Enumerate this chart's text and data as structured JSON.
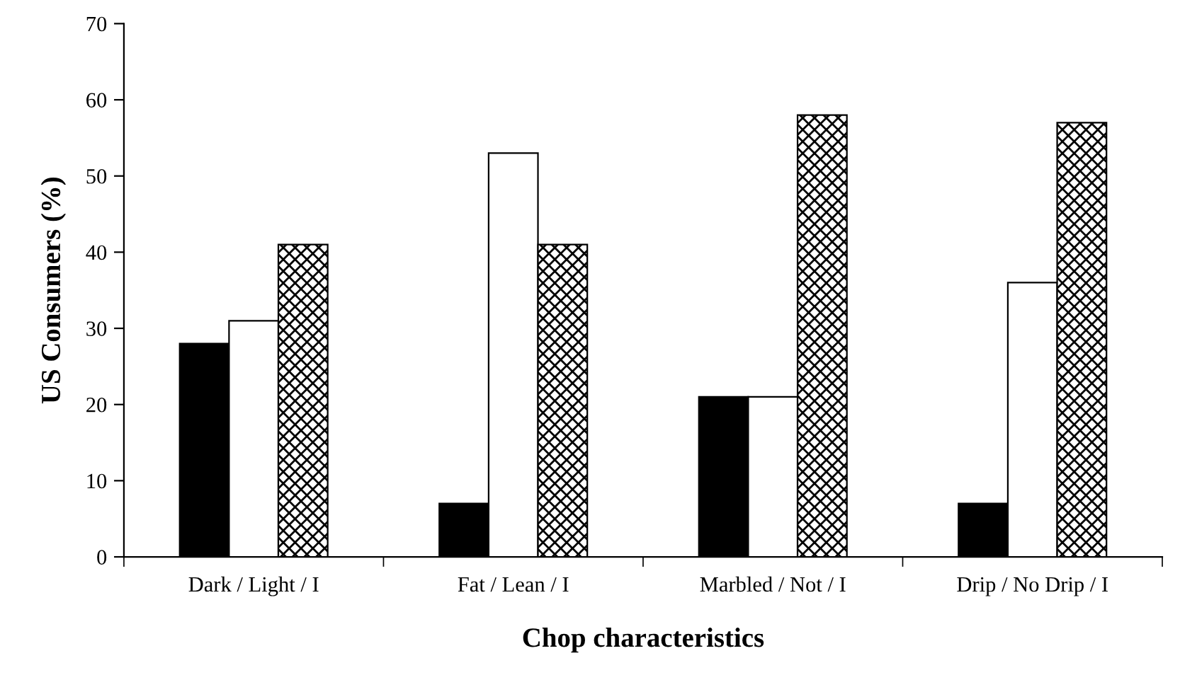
{
  "chart_data": {
    "type": "bar",
    "xlabel": "Chop characteristics",
    "ylabel": "US Consumers (%)",
    "categories": [
      "Dark / Light / I",
      "Fat / Lean / I",
      "Marbled / Not / I",
      "Drip / No Drip / I"
    ],
    "series": [
      {
        "color": "#000000",
        "values": [
          28,
          7,
          21,
          7
        ]
      },
      {
        "color": "#ffffff",
        "values": [
          31,
          53,
          21,
          36
        ]
      },
      {
        "color": "#000000",
        "values": [
          41,
          41,
          58,
          57
        ]
      }
    ],
    "ylim": [
      0,
      70
    ],
    "yticks": [
      0,
      10,
      20,
      30,
      40,
      50,
      60,
      70
    ],
    "grid": false,
    "legend": false
  }
}
